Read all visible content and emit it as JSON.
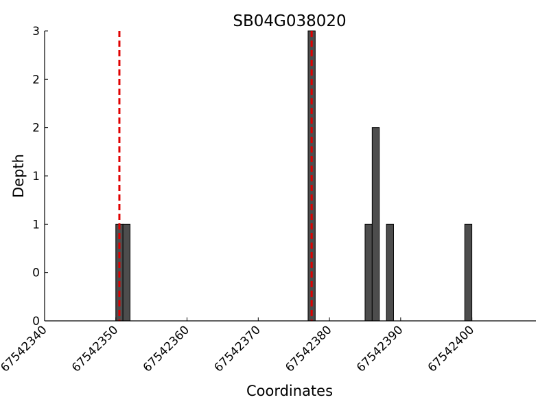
{
  "chart_data": {
    "type": "bar",
    "title": "SB04G038020",
    "xlabel": "Coordinates",
    "ylabel": "Depth",
    "x": [
      67542350,
      67542351,
      67542377,
      67542385,
      67542386,
      67542388,
      67542399
    ],
    "values": [
      1,
      1,
      3,
      1,
      2,
      1,
      1
    ],
    "bar_width": 1,
    "color": "#4d4d4d",
    "vlines": [
      67542350.5,
      67542377.5
    ],
    "vline_color": "#e00000",
    "xlim": [
      67542340,
      67542409
    ],
    "xticks": [
      67542340,
      67542350,
      67542360,
      67542370,
      67542380,
      67542390,
      67542400
    ],
    "ylim": [
      0,
      3
    ],
    "yticks": [
      0,
      {
        "value": 0.5,
        "label": "0"
      },
      1,
      {
        "value": 1.5,
        "label": "1"
      },
      2,
      {
        "value": 2.5,
        "label": "2"
      },
      3
    ]
  }
}
